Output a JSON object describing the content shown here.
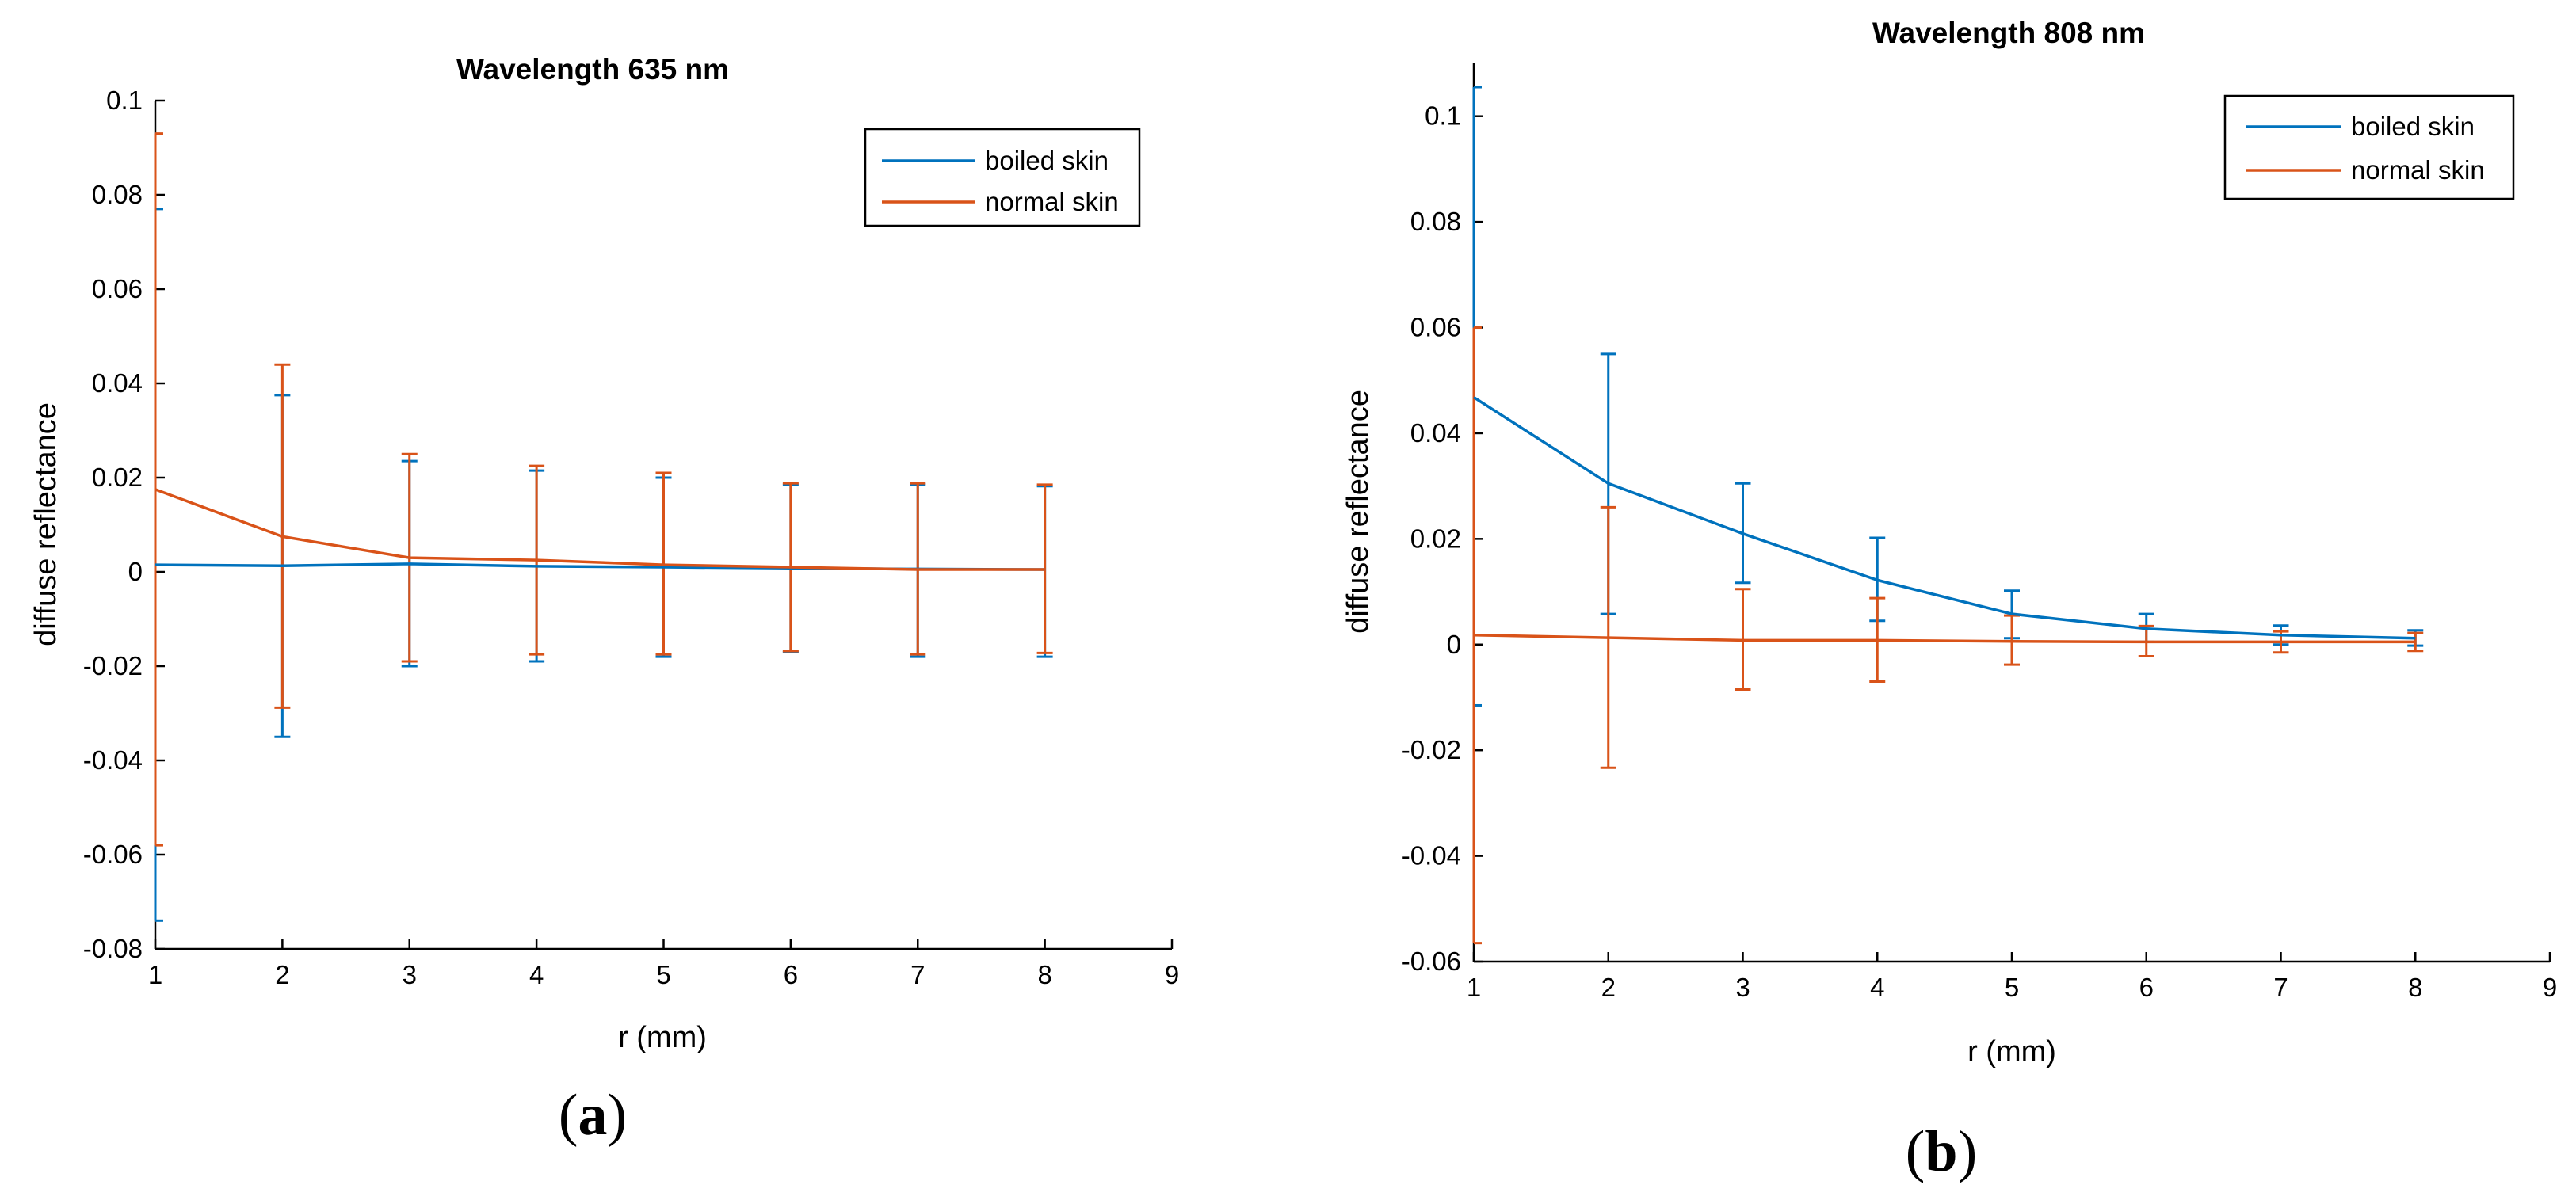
{
  "chart_data": [
    {
      "type": "line",
      "panel_tag": "a",
      "title": "Wavelength 635 nm",
      "xlabel": "r (mm)",
      "ylabel": "diffuse reflectance",
      "xlim": [
        1,
        9
      ],
      "ylim": [
        -0.08,
        0.1
      ],
      "xticks": [
        1,
        2,
        3,
        4,
        5,
        6,
        7,
        8,
        9
      ],
      "yticks": [
        -0.08,
        -0.06,
        -0.04,
        -0.02,
        0,
        0.02,
        0.04,
        0.06,
        0.08,
        0.1
      ],
      "xtick_labels": [
        "1",
        "2",
        "3",
        "4",
        "5",
        "6",
        "7",
        "8",
        "9"
      ],
      "ytick_labels": [
        "-0.08",
        "-0.06",
        "-0.04",
        "-0.02",
        "0",
        "0.02",
        "0.04",
        "0.06",
        "0.08",
        "0.1"
      ],
      "legend_position": "top-right",
      "grid": false,
      "x": [
        1,
        2,
        3,
        4,
        5,
        6,
        7,
        8
      ],
      "series": [
        {
          "name": "boiled skin",
          "color": "#0072BD",
          "values": [
            0.0015,
            0.0013,
            0.0017,
            0.0012,
            0.001,
            0.0008,
            0.0006,
            0.0005
          ],
          "lower": [
            -0.074,
            -0.035,
            -0.02,
            -0.019,
            -0.018,
            -0.017,
            -0.018,
            -0.018
          ],
          "upper": [
            0.077,
            0.0375,
            0.0235,
            0.0215,
            0.02,
            0.0185,
            0.0185,
            0.0182
          ]
        },
        {
          "name": "normal skin",
          "color": "#D95319",
          "values": [
            0.0175,
            0.0075,
            0.003,
            0.0025,
            0.0015,
            0.001,
            0.0005,
            0.0005
          ],
          "lower": [
            -0.058,
            -0.0288,
            -0.019,
            -0.0175,
            -0.0175,
            -0.0168,
            -0.0175,
            -0.0172
          ],
          "upper": [
            0.093,
            0.044,
            0.025,
            0.0225,
            0.021,
            0.0188,
            0.0188,
            0.0185
          ]
        }
      ]
    },
    {
      "type": "line",
      "panel_tag": "b",
      "title": "Wavelength 808 nm",
      "xlabel": "r (mm)",
      "ylabel": "diffuse reflectance",
      "xlim": [
        1,
        9
      ],
      "ylim": [
        -0.06,
        0.11
      ],
      "xticks": [
        1,
        2,
        3,
        4,
        5,
        6,
        7,
        8,
        9
      ],
      "yticks": [
        -0.06,
        -0.04,
        -0.02,
        0,
        0.02,
        0.04,
        0.06,
        0.08,
        0.1
      ],
      "xtick_labels": [
        "1",
        "2",
        "3",
        "4",
        "5",
        "6",
        "7",
        "8",
        "9"
      ],
      "ytick_labels": [
        "-0.06",
        "-0.04",
        "-0.02",
        "0",
        "0.02",
        "0.04",
        "0.06",
        "0.08",
        "0.1"
      ],
      "legend_position": "top-right",
      "grid": false,
      "x": [
        1,
        2,
        3,
        4,
        5,
        6,
        7,
        8
      ],
      "series": [
        {
          "name": "boiled skin",
          "color": "#0072BD",
          "values": [
            0.0468,
            0.0305,
            0.021,
            0.0122,
            0.0058,
            0.003,
            0.0018,
            0.0012
          ],
          "lower": [
            -0.0115,
            0.0058,
            0.0117,
            0.0045,
            0.0012,
            0.0005,
            0.0,
            -0.0002
          ],
          "upper": [
            0.1055,
            0.055,
            0.0305,
            0.0202,
            0.0102,
            0.0058,
            0.0036,
            0.0027
          ]
        },
        {
          "name": "normal skin",
          "color": "#D95319",
          "values": [
            0.0018,
            0.0013,
            0.0008,
            0.0008,
            0.0006,
            0.0005,
            0.0005,
            0.0005
          ],
          "lower": [
            -0.0565,
            -0.0233,
            -0.0085,
            -0.007,
            -0.0038,
            -0.0022,
            -0.0015,
            -0.0012
          ],
          "upper": [
            0.06,
            0.026,
            0.0105,
            0.0088,
            0.0055,
            0.0035,
            0.0025,
            0.0022
          ]
        }
      ]
    }
  ]
}
